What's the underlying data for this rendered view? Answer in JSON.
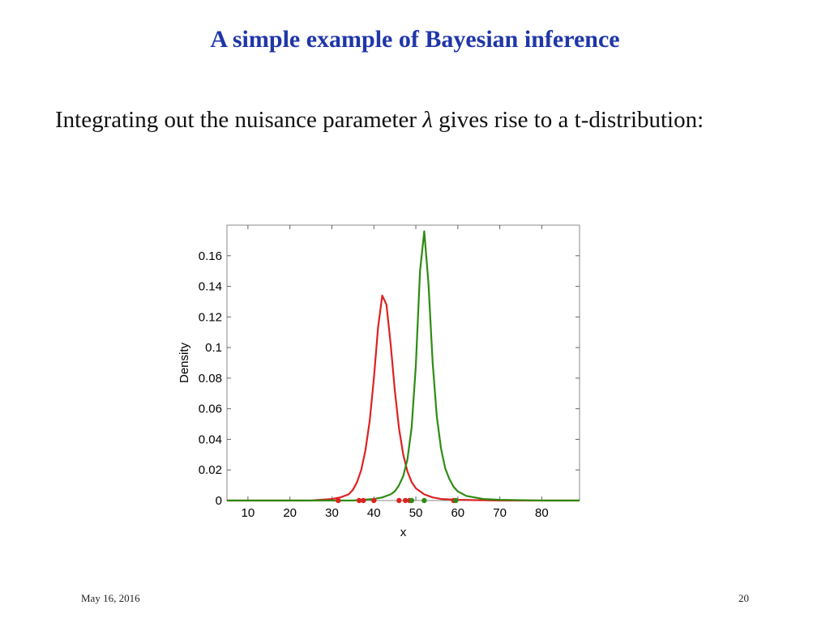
{
  "slide": {
    "title": "A simple example of Bayesian inference",
    "text_before": "Integrating out the nuisance parameter ",
    "symbol": "λ",
    "text_after": " gives rise to a t-distribution:"
  },
  "footer": {
    "date": "May 16, 2016",
    "page": "20"
  },
  "chart_data": {
    "type": "line",
    "title": "",
    "xlabel": "x",
    "ylabel": "Density",
    "xlim": [
      5,
      89
    ],
    "ylim": [
      0,
      0.18
    ],
    "xticks": [
      "10",
      "20",
      "30",
      "40",
      "50",
      "60",
      "70",
      "80"
    ],
    "xtick_values": [
      10,
      20,
      30,
      40,
      50,
      60,
      70,
      80
    ],
    "yticks": [
      "0",
      "0.02",
      "0.04",
      "0.06",
      "0.08",
      "0.1",
      "0.12",
      "0.14",
      "0.16"
    ],
    "ytick_values": [
      0,
      0.02,
      0.04,
      0.06,
      0.08,
      0.1,
      0.12,
      0.14,
      0.16
    ],
    "grid": false,
    "series": [
      {
        "color": "#dd2222",
        "x": [
          5,
          25,
          30,
          32,
          34,
          35,
          36,
          37,
          38,
          39,
          40,
          41,
          42,
          43,
          44,
          45,
          46,
          47,
          48,
          49,
          50,
          52,
          54,
          56,
          60,
          70,
          89
        ],
        "y": [
          0,
          0,
          0.001,
          0.002,
          0.004,
          0.007,
          0.012,
          0.02,
          0.033,
          0.052,
          0.08,
          0.113,
          0.134,
          0.128,
          0.102,
          0.072,
          0.047,
          0.03,
          0.019,
          0.012,
          0.008,
          0.004,
          0.002,
          0.001,
          0.0005,
          0,
          0
        ],
        "points": [
          31.5,
          36.5,
          37.5,
          40,
          46,
          47.5,
          48.5,
          59
        ]
      },
      {
        "color": "#2e8b12",
        "x": [
          5,
          35,
          40,
          42,
          44,
          45,
          46,
          47,
          48,
          49,
          50,
          51,
          52,
          53,
          54,
          55,
          56,
          57,
          58,
          59,
          60,
          62,
          64,
          66,
          70,
          80,
          89
        ],
        "y": [
          0,
          0,
          0.001,
          0.002,
          0.004,
          0.006,
          0.01,
          0.016,
          0.027,
          0.048,
          0.088,
          0.15,
          0.176,
          0.142,
          0.09,
          0.055,
          0.034,
          0.021,
          0.014,
          0.009,
          0.006,
          0.003,
          0.002,
          0.001,
          0.0005,
          0,
          0
        ],
        "points": [
          49,
          52,
          59.5
        ]
      }
    ]
  }
}
